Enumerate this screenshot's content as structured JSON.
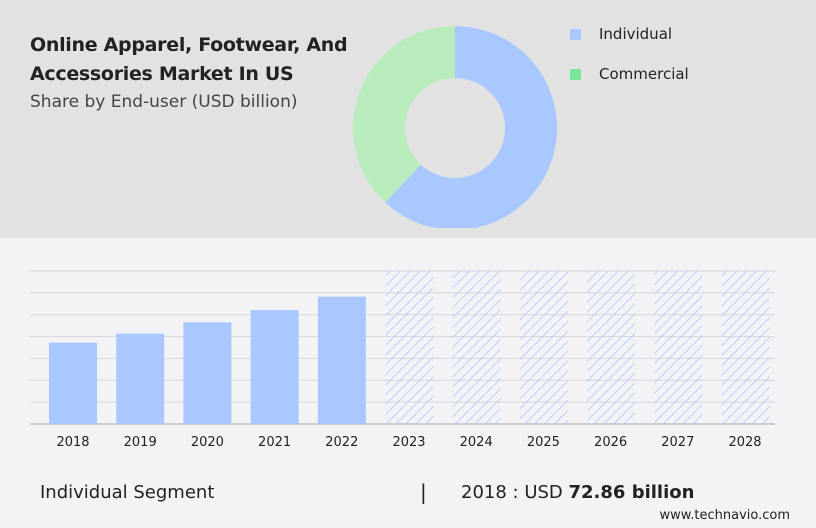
{
  "header": {
    "title": "Online Apparel, Footwear, And Accessories Market In US",
    "subtitle": "Share by End-user (USD billion)"
  },
  "chart_data": [
    {
      "type": "pie",
      "style": "donut",
      "labels": [
        "Individual",
        "Commercial"
      ],
      "values": [
        62,
        38
      ],
      "colors": [
        "#a8c8ff",
        "#b8ecbc"
      ],
      "legend_colors": [
        "#a8c8ff",
        "#7ae69a"
      ],
      "legend": "right"
    },
    {
      "type": "bar",
      "categories": [
        "2018",
        "2019",
        "2020",
        "2021",
        "2022",
        "2023",
        "2024",
        "2025",
        "2026",
        "2027",
        "2028"
      ],
      "values": [
        72.86,
        81,
        91,
        102,
        114,
        null,
        null,
        null,
        null,
        null,
        null
      ],
      "forecast": [
        "2023",
        "2024",
        "2025",
        "2026",
        "2027",
        "2028"
      ],
      "color": "#a8c8ff",
      "grid": true,
      "ylim": [
        0,
        137
      ]
    }
  ],
  "footer": {
    "segment": "Individual Segment",
    "separator": "|",
    "year_label": "2018 : USD ",
    "value": "72.86 billion",
    "website": "www.technavio.com"
  }
}
